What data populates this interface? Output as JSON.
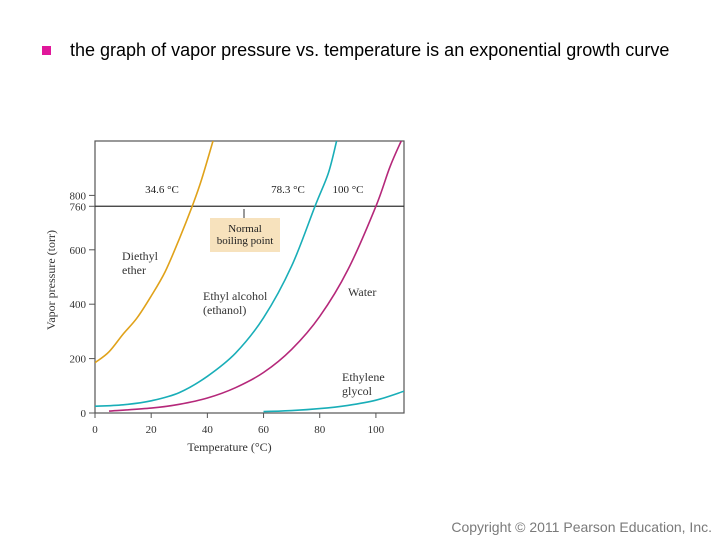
{
  "slide": {
    "bullet_text": "the graph of vapor pressure vs. temperature is an exponential growth curve",
    "copyright": "Copyright © 2011 Pearson Education, Inc."
  },
  "colors": {
    "ether": "#e0a21a",
    "ethanol": "#19aeb8",
    "water": "#b5287a",
    "glycol": "#19aeb8",
    "callout_fill": "#f7e2bd",
    "axis": "#555555"
  },
  "chart_data": {
    "type": "line",
    "xlabel": "Temperature (°C)",
    "ylabel": "Vapor pressure (torr)",
    "xlim": [
      0,
      110
    ],
    "ylim": [
      0,
      1000
    ],
    "xticks": [
      0,
      20,
      40,
      60,
      80,
      100
    ],
    "yticks": [
      0,
      200,
      400,
      600,
      760,
      800
    ],
    "reference_line": {
      "y": 760
    },
    "callout": [
      "Normal",
      "boiling point"
    ],
    "series": [
      {
        "name": "Diethyl ether",
        "label": [
          "Diethyl",
          "ether"
        ],
        "color_key": "ether",
        "points": [
          [
            0,
            185
          ],
          [
            5,
            225
          ],
          [
            10,
            290
          ],
          [
            15,
            350
          ],
          [
            20,
            430
          ],
          [
            25,
            520
          ],
          [
            30,
            640
          ],
          [
            34.6,
            760
          ],
          [
            38,
            860
          ],
          [
            42,
            1000
          ]
        ]
      },
      {
        "name": "Ethyl alcohol (ethanol)",
        "label": [
          "Ethyl alcohol",
          "(ethanol)"
        ],
        "color_key": "ethanol",
        "points": [
          [
            0,
            25
          ],
          [
            10,
            30
          ],
          [
            20,
            45
          ],
          [
            30,
            75
          ],
          [
            40,
            135
          ],
          [
            50,
            220
          ],
          [
            60,
            350
          ],
          [
            70,
            540
          ],
          [
            78.3,
            760
          ],
          [
            83,
            880
          ],
          [
            86,
            1000
          ]
        ]
      },
      {
        "name": "Water",
        "label": [
          "Water"
        ],
        "color_key": "water",
        "points": [
          [
            5,
            7
          ],
          [
            20,
            18
          ],
          [
            30,
            32
          ],
          [
            40,
            55
          ],
          [
            50,
            93
          ],
          [
            60,
            149
          ],
          [
            70,
            234
          ],
          [
            80,
            355
          ],
          [
            90,
            526
          ],
          [
            100,
            760
          ],
          [
            105,
            905
          ],
          [
            109,
            1000
          ]
        ]
      },
      {
        "name": "Ethylene glycol",
        "label": [
          "Ethylene",
          "glycol"
        ],
        "color_key": "glycol",
        "points": [
          [
            60,
            5
          ],
          [
            70,
            9
          ],
          [
            80,
            16
          ],
          [
            90,
            28
          ],
          [
            100,
            47
          ],
          [
            110,
            80
          ]
        ]
      }
    ],
    "annotations": [
      {
        "text": "34.6 °C",
        "x": 34.6
      },
      {
        "text": "78.3 °C",
        "x": 78.3
      },
      {
        "text": "100 °C",
        "x": 100
      }
    ]
  }
}
